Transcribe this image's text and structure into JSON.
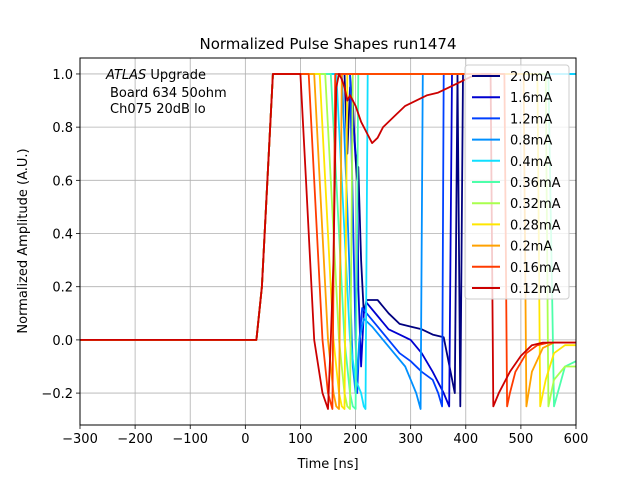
{
  "chart_data": {
    "type": "line",
    "title": "Normalized Pulse Shapes run1474",
    "xlabel": "Time [ns]",
    "ylabel": "Normalized Amplitude (A.U.)",
    "xlim": [
      -300,
      600
    ],
    "ylim": [
      -0.32,
      1.06
    ],
    "xticks": [
      -300,
      -200,
      -100,
      0,
      100,
      200,
      300,
      400,
      500,
      600
    ],
    "xtick_labels": [
      "−300",
      "−200",
      "−100",
      "0",
      "100",
      "200",
      "300",
      "400",
      "500",
      "600"
    ],
    "yticks": [
      -0.2,
      0.0,
      0.2,
      0.4,
      0.6,
      0.8,
      1.0
    ],
    "ytick_labels": [
      "−0.2",
      "0.0",
      "0.2",
      "0.4",
      "0.6",
      "0.8",
      "1.0"
    ],
    "grid": true,
    "legend_position": "upper-right",
    "annotation": {
      "line1_italic": "ATLAS",
      "line1_rest": " Upgrade",
      "line2": "Board 634 50ohm",
      "line3": "Ch075 20dB lo"
    },
    "series": [
      {
        "name": "2.0mA",
        "color": "#00007f",
        "x": [
          -300,
          20,
          30,
          50,
          180,
          185,
          190,
          195,
          198,
          200,
          203,
          205,
          210,
          215,
          220,
          240,
          260,
          280,
          300,
          320,
          340,
          360,
          380,
          385,
          390,
          395,
          400,
          450,
          500,
          550,
          600
        ],
        "y": [
          0,
          0,
          0.2,
          1.0,
          1.0,
          0.7,
          0.95,
          0.9,
          0.75,
          0.68,
          0.6,
          0.65,
          0.3,
          0.1,
          0.15,
          0.15,
          0.1,
          0.06,
          0.05,
          0.04,
          0.02,
          0.01,
          -0.2,
          1.0,
          -0.25,
          1.0,
          1.0,
          1.0,
          1.0,
          1.0,
          1.0
        ]
      },
      {
        "name": "1.6mA",
        "color": "#0000d0",
        "x": [
          -300,
          20,
          30,
          50,
          190,
          200,
          203,
          205,
          210,
          215,
          220,
          240,
          260,
          280,
          300,
          320,
          340,
          360,
          370,
          375,
          380,
          400,
          450,
          500,
          550,
          600
        ],
        "y": [
          0,
          0,
          0.2,
          1.0,
          1.0,
          0.7,
          0.68,
          0.2,
          -0.1,
          0.1,
          0.14,
          0.09,
          0.04,
          0.02,
          0.0,
          -0.05,
          -0.12,
          -0.2,
          -0.25,
          1.0,
          1.0,
          1.0,
          1.0,
          1.0,
          1.0,
          1.0
        ]
      },
      {
        "name": "1.2mA",
        "color": "#0040ff",
        "x": [
          -300,
          20,
          30,
          50,
          190,
          195,
          200,
          203,
          207,
          212,
          220,
          240,
          260,
          280,
          300,
          320,
          340,
          350,
          357,
          360,
          400,
          450,
          500,
          550,
          600
        ],
        "y": [
          0,
          0,
          0.2,
          1.0,
          1.0,
          0.5,
          0.0,
          -0.2,
          0.0,
          0.12,
          0.1,
          0.05,
          0.0,
          -0.05,
          -0.08,
          -0.12,
          -0.15,
          -0.2,
          -0.25,
          1.0,
          1.0,
          1.0,
          1.0,
          1.0,
          1.0
        ]
      },
      {
        "name": "0.8mA",
        "color": "#0090ff",
        "x": [
          -300,
          20,
          30,
          50,
          175,
          185,
          195,
          200,
          207,
          215,
          230,
          250,
          270,
          290,
          310,
          318,
          322,
          400,
          450,
          500,
          550,
          600
        ],
        "y": [
          0,
          0,
          0.2,
          1.0,
          1.0,
          0.5,
          -0.1,
          -0.2,
          0.0,
          0.08,
          0.05,
          0.0,
          -0.05,
          -0.1,
          -0.2,
          -0.26,
          1.0,
          1.0,
          1.0,
          1.0,
          1.0,
          1.0
        ]
      },
      {
        "name": "0.4mA",
        "color": "#10dfff",
        "x": [
          -300,
          20,
          30,
          50,
          165,
          175,
          190,
          200,
          210,
          215,
          218,
          222,
          400,
          450,
          500,
          550,
          600
        ],
        "y": [
          0,
          0,
          0.2,
          1.0,
          1.0,
          0.6,
          0.0,
          -0.15,
          -0.2,
          -0.25,
          -0.26,
          1.0,
          1.0,
          1.0,
          1.0,
          1.0,
          1.0
        ]
      },
      {
        "name": "0.36mA",
        "color": "#4dffaa",
        "x": [
          -300,
          20,
          30,
          50,
          155,
          165,
          180,
          190,
          195,
          200,
          205,
          400,
          450,
          500,
          550,
          560,
          580,
          600
        ],
        "y": [
          0,
          0,
          0.2,
          1.0,
          1.0,
          0.6,
          0.0,
          -0.2,
          -0.25,
          -0.26,
          1.0,
          1.0,
          1.0,
          1.0,
          1.0,
          -0.25,
          -0.1,
          -0.08
        ]
      },
      {
        "name": "0.32mA",
        "color": "#a9ff4e",
        "x": [
          -300,
          20,
          30,
          50,
          145,
          155,
          170,
          180,
          185,
          190,
          195,
          400,
          450,
          500,
          545,
          550,
          560,
          580,
          600
        ],
        "y": [
          0,
          0,
          0.2,
          1.0,
          1.0,
          0.6,
          0.0,
          -0.2,
          -0.25,
          -0.26,
          1.0,
          1.0,
          1.0,
          1.0,
          1.0,
          -0.25,
          -0.15,
          -0.1,
          -0.1
        ]
      },
      {
        "name": "0.28mA",
        "color": "#ffe600",
        "x": [
          -300,
          20,
          30,
          50,
          135,
          145,
          160,
          170,
          175,
          180,
          185,
          400,
          450,
          500,
          530,
          535,
          545,
          560,
          580,
          600
        ],
        "y": [
          0,
          0,
          0.2,
          1.0,
          1.0,
          0.6,
          0.0,
          -0.2,
          -0.25,
          -0.26,
          1.0,
          1.0,
          1.0,
          1.0,
          1.0,
          -0.25,
          -0.15,
          -0.05,
          -0.02,
          -0.02
        ]
      },
      {
        "name": "0.2mA",
        "color": "#ffa100",
        "x": [
          -300,
          20,
          30,
          50,
          125,
          135,
          150,
          160,
          165,
          170,
          175,
          400,
          450,
          500,
          505,
          510,
          520,
          540,
          560,
          580,
          600
        ],
        "y": [
          0,
          0,
          0.2,
          1.0,
          1.0,
          0.6,
          0.0,
          -0.2,
          -0.25,
          -0.26,
          1.0,
          1.0,
          1.0,
          1.0,
          1.0,
          -0.25,
          -0.12,
          -0.03,
          -0.01,
          -0.01,
          -0.01
        ]
      },
      {
        "name": "0.16mA",
        "color": "#ff3b00",
        "x": [
          -300,
          20,
          30,
          50,
          115,
          125,
          140,
          150,
          158,
          163,
          400,
          450,
          470,
          475,
          480,
          490,
          510,
          530,
          550,
          570,
          600
        ],
        "y": [
          0,
          0,
          0.2,
          1.0,
          1.0,
          0.6,
          0.0,
          -0.2,
          -0.26,
          1.0,
          1.0,
          1.0,
          1.0,
          -0.25,
          -0.2,
          -0.12,
          -0.05,
          -0.02,
          -0.01,
          -0.01,
          -0.01
        ]
      },
      {
        "name": "0.12mA",
        "color": "#cc0000",
        "x": [
          -300,
          20,
          30,
          50,
          100,
          110,
          125,
          140,
          150,
          155,
          160,
          165,
          168,
          170,
          175,
          180,
          185,
          190,
          200,
          210,
          220,
          230,
          240,
          250,
          270,
          290,
          310,
          330,
          350,
          370,
          390,
          410,
          430,
          445,
          450,
          460,
          480,
          500,
          520,
          540,
          560,
          580,
          600
        ],
        "y": [
          0,
          0,
          0.2,
          1.0,
          1.0,
          0.6,
          0.0,
          -0.2,
          -0.26,
          0.0,
          0.3,
          0.95,
          0.98,
          1.0,
          0.98,
          0.95,
          0.9,
          0.92,
          0.88,
          0.82,
          0.78,
          0.74,
          0.76,
          0.8,
          0.84,
          0.88,
          0.9,
          0.92,
          0.93,
          0.95,
          0.97,
          0.99,
          1.0,
          1.0,
          -0.25,
          -0.2,
          -0.12,
          -0.06,
          -0.02,
          -0.01,
          -0.01,
          -0.01,
          -0.01
        ]
      }
    ]
  }
}
